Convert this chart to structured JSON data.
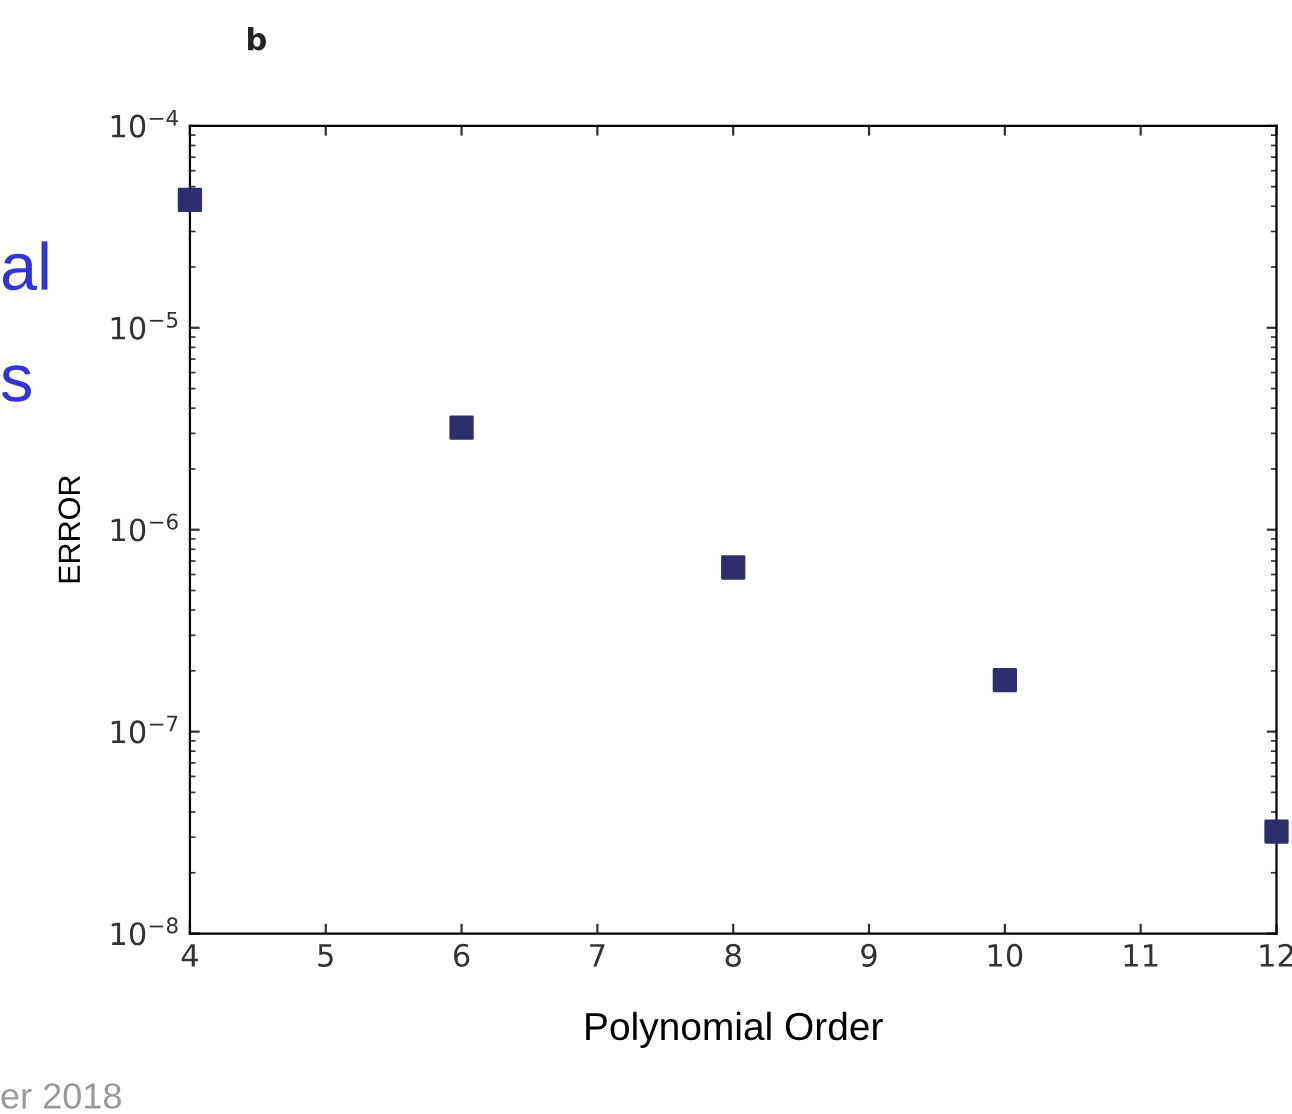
{
  "chart_data": {
    "type": "scatter",
    "title": "b",
    "xlabel": "Polynomial Order",
    "ylabel": "ERROR",
    "x": [
      4,
      6,
      8,
      10,
      12
    ],
    "series": [
      {
        "color": "#2e2e6e",
        "values": [
          4.3e-05,
          3.2e-06,
          6.5e-07,
          1.8e-07,
          3.2e-08
        ]
      }
    ],
    "log": "y",
    "marker": "square",
    "grid": false,
    "legend": false,
    "xlim": [
      4,
      12
    ],
    "xticks": [
      4,
      5,
      6,
      7,
      8,
      9,
      10,
      11,
      12
    ],
    "ylim": [
      1e-08,
      0.0001
    ],
    "yticks": [
      {
        "value": 1e-08,
        "label": "10$^{−8}$"
      },
      {
        "value": 1e-07,
        "label": "10$^{−7}$"
      },
      {
        "value": 1e-06,
        "label": "10$^{−6}$"
      },
      {
        "value": 1e-05,
        "label": "10$^{−5}$"
      },
      {
        "value": 0.0001,
        "label": "10$^{−4}$"
      }
    ],
    "annotations": [
      "al",
      "s",
      "er 2018"
    ]
  }
}
